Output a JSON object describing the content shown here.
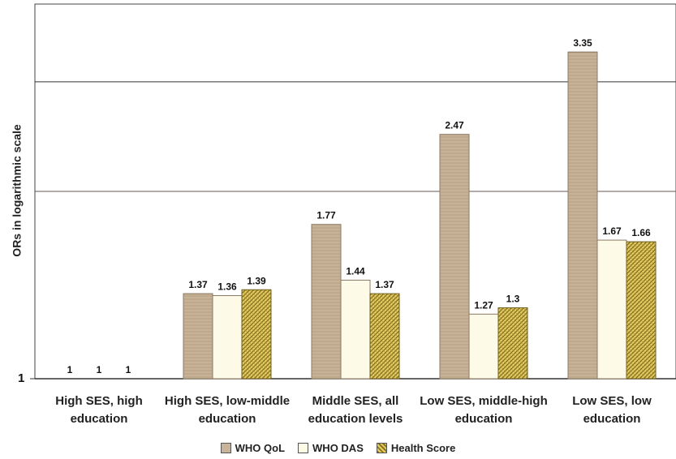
{
  "chart_data": {
    "type": "bar",
    "ylabel": "ORs in logarithmic scale",
    "yscale": "log",
    "ytick_label": "1",
    "categories": [
      [
        "High SES, high",
        "education"
      ],
      [
        "High SES, low-middle",
        "education"
      ],
      [
        "Middle SES, all",
        "education levels"
      ],
      [
        "Low SES, middle-high",
        "education"
      ],
      [
        "Low SES, low",
        "education"
      ]
    ],
    "series": [
      {
        "name": "WHO QoL",
        "values": [
          1,
          1.37,
          1.77,
          2.47,
          3.35
        ],
        "labels": [
          "1",
          "1.37",
          "1.77",
          "2.47",
          "3.35"
        ],
        "color": "#c8b49a"
      },
      {
        "name": "WHO DAS",
        "values": [
          1,
          1.36,
          1.44,
          1.27,
          1.67
        ],
        "labels": [
          "1",
          "1.36",
          "1.44",
          "1.27",
          "1.67"
        ],
        "color": "#fdfbe8"
      },
      {
        "name": "Health Score",
        "values": [
          1,
          1.39,
          1.37,
          1.3,
          1.66
        ],
        "labels": [
          "1",
          "1.39",
          "1.37",
          "1.3",
          "1.66"
        ],
        "color": "#d9bf4e"
      }
    ],
    "ylim": [
      1,
      4
    ],
    "grid": "horizontal",
    "legend": "bottom"
  }
}
